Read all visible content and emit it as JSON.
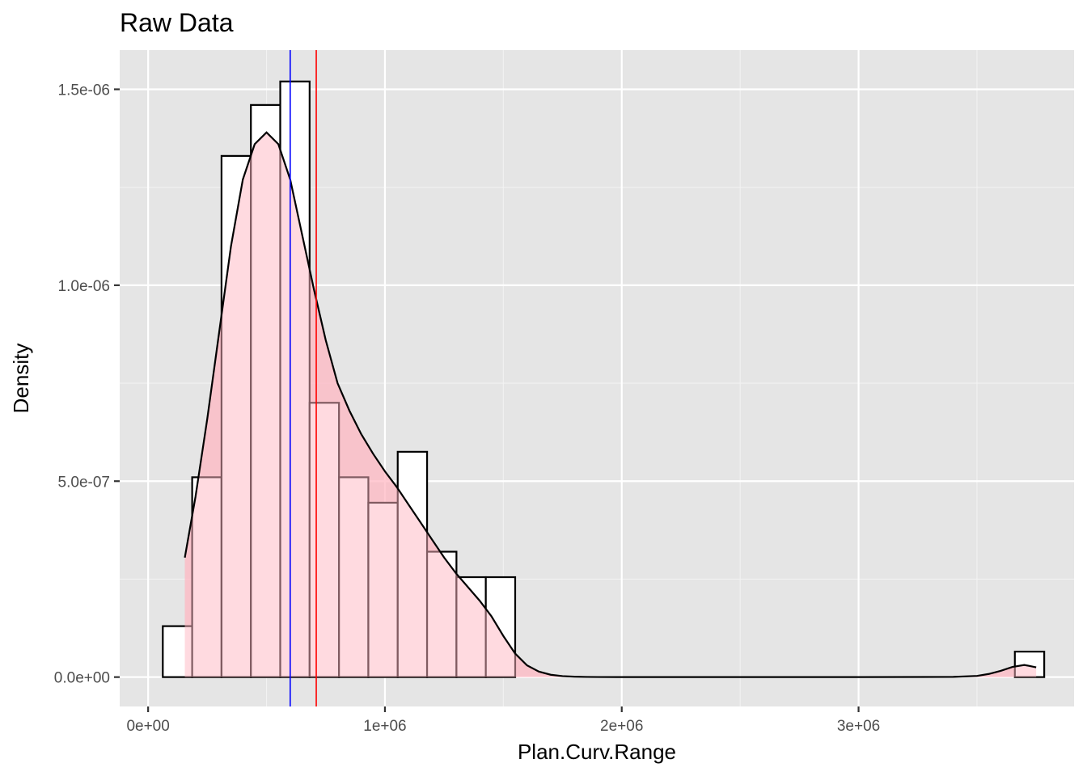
{
  "chart_data": {
    "type": "histogram",
    "title": "Raw Data",
    "xlabel": "Plan.Curv.Range",
    "ylabel": "Density",
    "x_ticks": [
      {
        "value": 0,
        "label": "0e+00"
      },
      {
        "value": 1000000,
        "label": "1e+06"
      },
      {
        "value": 2000000,
        "label": "2e+06"
      },
      {
        "value": 3000000,
        "label": "3e+06"
      }
    ],
    "y_ticks": [
      {
        "value": 0,
        "label": "0.0e+00"
      },
      {
        "value": 5e-07,
        "label": "5.0e-07"
      },
      {
        "value": 1e-06,
        "label": "1.0e-06"
      },
      {
        "value": 1.5e-06,
        "label": "1.5e-06"
      }
    ],
    "xlim": [
      -120000,
      3910000
    ],
    "ylim": [
      -7.5e-08,
      1.6e-06
    ],
    "grid": true,
    "background": "#e5e5e5",
    "bins": [
      {
        "x0": 62000,
        "x1": 186000,
        "density": 1.3e-07
      },
      {
        "x0": 186000,
        "x1": 310000,
        "density": 5.1e-07
      },
      {
        "x0": 310000,
        "x1": 434000,
        "density": 1.33e-06
      },
      {
        "x0": 434000,
        "x1": 558000,
        "density": 1.46e-06
      },
      {
        "x0": 558000,
        "x1": 682000,
        "density": 1.52e-06
      },
      {
        "x0": 682000,
        "x1": 806000,
        "density": 7e-07
      },
      {
        "x0": 806000,
        "x1": 930000,
        "density": 5.1e-07
      },
      {
        "x0": 930000,
        "x1": 1054000,
        "density": 4.45e-07
      },
      {
        "x0": 1054000,
        "x1": 1178000,
        "density": 5.75e-07
      },
      {
        "x0": 1178000,
        "x1": 1302000,
        "density": 3.2e-07
      },
      {
        "x0": 1302000,
        "x1": 1426000,
        "density": 2.55e-07
      },
      {
        "x0": 1426000,
        "x1": 1550000,
        "density": 2.55e-07
      },
      {
        "x0": 3660000,
        "x1": 3784000,
        "density": 6.5e-08
      }
    ],
    "density_curve": {
      "x": [
        155000,
        200000,
        250000,
        300000,
        350000,
        400000,
        450000,
        500000,
        550000,
        600000,
        650000,
        700000,
        750000,
        800000,
        850000,
        900000,
        950000,
        1000000,
        1050000,
        1100000,
        1150000,
        1200000,
        1250000,
        1300000,
        1350000,
        1400000,
        1450000,
        1500000,
        1550000,
        1600000,
        1650000,
        1700000,
        1750000,
        1800000,
        1850000,
        1900000,
        2000000,
        2500000,
        3000000,
        3400000,
        3500000,
        3550000,
        3600000,
        3650000,
        3700000,
        3750000
      ],
      "y": [
        3.05e-07,
        4.6e-07,
        6.6e-07,
        8.8e-07,
        1.1e-06,
        1.27e-06,
        1.36e-06,
        1.39e-06,
        1.36e-06,
        1.27e-06,
        1.13e-06,
        9.9e-07,
        8.6e-07,
        7.5e-07,
        6.8e-07,
        6.2e-07,
        5.7e-07,
        5.25e-07,
        4.85e-07,
        4.4e-07,
        3.95e-07,
        3.5e-07,
        3.05e-07,
        2.65e-07,
        2.3e-07,
        1.95e-07,
        1.55e-07,
        1.05e-07,
        6e-08,
        3e-08,
        1.4e-08,
        6e-09,
        2.5e-09,
        1e-09,
        4e-10,
        2e-10,
        0,
        0,
        0,
        5e-10,
        3e-09,
        8e-09,
        1.6e-08,
        2.6e-08,
        3.1e-08,
        2.5e-08
      ],
      "fill": "#ffb6c1"
    },
    "vlines": [
      {
        "x": 600000,
        "color": "#0000ff"
      },
      {
        "x": 710000,
        "color": "#ff0000"
      }
    ]
  }
}
